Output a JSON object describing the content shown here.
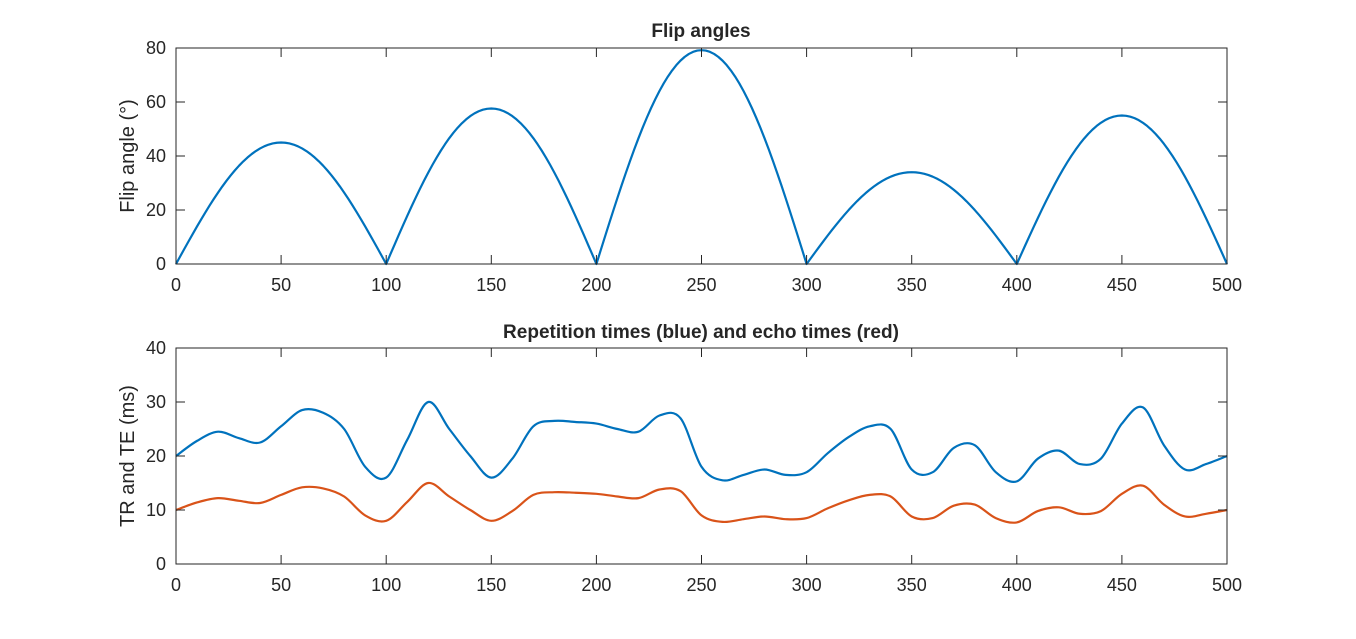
{
  "chart_data": [
    {
      "type": "line",
      "title": "Flip angles",
      "xlabel": "",
      "ylabel": "Flip angle (°)",
      "xlim": [
        0,
        500
      ],
      "ylim": [
        0,
        80
      ],
      "xticks": [
        "0",
        "50",
        "100",
        "150",
        "200",
        "250",
        "300",
        "350",
        "400",
        "450",
        "500"
      ],
      "yticks": [
        "0",
        "20",
        "40",
        "60",
        "80"
      ],
      "grid": false,
      "shape": "half-sine arches between zeros at 0, 100, 200, 300, 400, 500",
      "series": [
        {
          "color": "#0072BD",
          "x": [
            0,
            10,
            20,
            30,
            40,
            50,
            60,
            70,
            80,
            90,
            100,
            110,
            120,
            130,
            140,
            150,
            160,
            170,
            180,
            190,
            200,
            210,
            220,
            230,
            240,
            250,
            260,
            270,
            280,
            290,
            300,
            310,
            320,
            330,
            340,
            350,
            360,
            370,
            380,
            390,
            400,
            410,
            420,
            430,
            440,
            450,
            460,
            470,
            480,
            490,
            500
          ],
          "values": [
            0,
            13.9,
            26.5,
            36.4,
            42.8,
            45.0,
            42.8,
            36.4,
            26.5,
            13.9,
            0,
            17.8,
            33.9,
            46.6,
            54.8,
            57.6,
            54.8,
            46.6,
            33.9,
            17.8,
            0,
            24.5,
            46.6,
            64.1,
            75.3,
            79.2,
            75.3,
            64.1,
            46.6,
            24.5,
            0,
            10.5,
            20.0,
            27.5,
            32.3,
            34.0,
            32.3,
            27.5,
            20.0,
            10.5,
            0,
            17.0,
            32.3,
            44.5,
            52.3,
            55.0,
            52.3,
            44.5,
            32.3,
            17.0,
            0
          ]
        }
      ]
    },
    {
      "type": "line",
      "title": "Repetition times (blue) and echo times (red)",
      "xlabel": "",
      "ylabel": "TR and TE (ms)",
      "xlim": [
        0,
        500
      ],
      "ylim": [
        0,
        40
      ],
      "xticks": [
        "0",
        "50",
        "100",
        "150",
        "200",
        "250",
        "300",
        "350",
        "400",
        "450",
        "500"
      ],
      "yticks": [
        "0",
        "10",
        "20",
        "30",
        "40"
      ],
      "grid": false,
      "series": [
        {
          "color": "#0072BD",
          "x": [
            0,
            10,
            20,
            30,
            40,
            50,
            60,
            70,
            80,
            90,
            100,
            110,
            120,
            130,
            140,
            150,
            160,
            170,
            180,
            190,
            200,
            210,
            220,
            230,
            240,
            250,
            260,
            270,
            280,
            290,
            300,
            310,
            320,
            330,
            340,
            350,
            360,
            370,
            380,
            390,
            400,
            410,
            420,
            430,
            440,
            450,
            460,
            470,
            480,
            490,
            500
          ],
          "values": [
            20.0,
            22.8,
            24.5,
            23.3,
            22.5,
            25.5,
            28.5,
            28.0,
            25.0,
            18.0,
            16.0,
            23.0,
            30.0,
            25.0,
            20.0,
            16.0,
            19.5,
            25.5,
            26.5,
            26.3,
            26.0,
            25.0,
            24.5,
            27.5,
            27.0,
            18.0,
            15.5,
            16.5,
            17.5,
            16.5,
            17.0,
            20.5,
            23.5,
            25.5,
            25.0,
            17.5,
            17.0,
            21.5,
            22.0,
            17.0,
            15.3,
            19.5,
            21.0,
            18.5,
            19.5,
            26.0,
            29.0,
            22.0,
            17.5,
            18.5,
            20.0
          ]
        },
        {
          "color": "#D95319",
          "x": [
            0,
            10,
            20,
            30,
            40,
            50,
            60,
            70,
            80,
            90,
            100,
            110,
            120,
            130,
            140,
            150,
            160,
            170,
            180,
            190,
            200,
            210,
            220,
            230,
            240,
            250,
            260,
            270,
            280,
            290,
            300,
            310,
            320,
            330,
            340,
            350,
            360,
            370,
            380,
            390,
            400,
            410,
            420,
            430,
            440,
            450,
            460,
            470,
            480,
            490,
            500
          ],
          "values": [
            10.0,
            11.4,
            12.2,
            11.7,
            11.3,
            12.8,
            14.2,
            14.0,
            12.5,
            9.0,
            8.0,
            11.5,
            15.0,
            12.5,
            10.0,
            8.0,
            9.8,
            12.8,
            13.3,
            13.2,
            13.0,
            12.5,
            12.2,
            13.8,
            13.5,
            9.0,
            7.8,
            8.3,
            8.8,
            8.3,
            8.5,
            10.3,
            11.8,
            12.8,
            12.5,
            8.8,
            8.5,
            10.8,
            11.0,
            8.5,
            7.7,
            9.8,
            10.5,
            9.3,
            9.8,
            13.0,
            14.5,
            11.0,
            8.8,
            9.3,
            10.0
          ]
        }
      ]
    }
  ]
}
